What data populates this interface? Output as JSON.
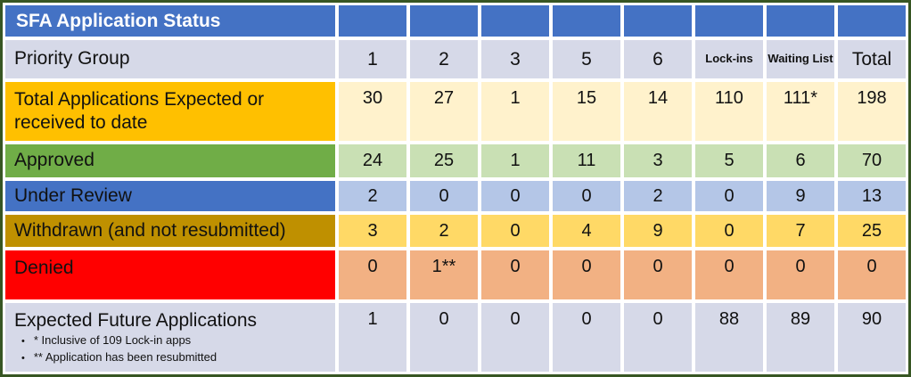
{
  "table": {
    "title": "SFA Application Status",
    "corner_label": "Priority Group",
    "columns": [
      {
        "label": "1",
        "compact": false
      },
      {
        "label": "2",
        "compact": false
      },
      {
        "label": "3",
        "compact": false
      },
      {
        "label": "5",
        "compact": false
      },
      {
        "label": "6",
        "compact": false
      },
      {
        "label": "Lock-ins",
        "compact": true
      },
      {
        "label": "Waiting List",
        "compact": true
      },
      {
        "label": "Total",
        "compact": false
      }
    ],
    "rows": [
      {
        "name": "total-expected",
        "label": "Total Applications Expected or received to date",
        "values": [
          "30",
          "27",
          "1",
          "15",
          "14",
          "110",
          "111*",
          "198"
        ],
        "label_bg": "#FFC000",
        "label_text": "#111111",
        "cell_bg": "#FFF2CC"
      },
      {
        "name": "approved",
        "label": "Approved",
        "values": [
          "24",
          "25",
          "1",
          "11",
          "3",
          "5",
          "6",
          "70"
        ],
        "label_bg": "#70AD47",
        "label_text": "#111111",
        "cell_bg": "#C9E0B4"
      },
      {
        "name": "under-review",
        "label": "Under Review",
        "values": [
          "2",
          "0",
          "0",
          "0",
          "2",
          "0",
          "9",
          "13"
        ],
        "label_bg": "#4472C4",
        "label_text": "#111111",
        "cell_bg": "#B4C6E7"
      },
      {
        "name": "withdrawn",
        "label": "Withdrawn (and not resubmitted)",
        "values": [
          "3",
          "2",
          "0",
          "4",
          "9",
          "0",
          "7",
          "25"
        ],
        "label_bg": "#BF9000",
        "label_text": "#111111",
        "cell_bg": "#FFD966"
      },
      {
        "name": "denied",
        "label": "Denied",
        "values": [
          "0",
          "1**",
          "0",
          "0",
          "0",
          "0",
          "0",
          "0"
        ],
        "label_bg": "#FF0000",
        "label_text": "#111111",
        "cell_bg": "#F2B183"
      },
      {
        "name": "expected-future",
        "label": "Expected Future Applications",
        "values": [
          "1",
          "0",
          "0",
          "0",
          "0",
          "88",
          "89",
          "90"
        ],
        "label_bg": "#D6D9E8",
        "label_text": "#111111",
        "cell_bg": "#D6D9E8",
        "footnotes": [
          "* Inclusive of 109 Lock-in apps",
          "** Application has been resubmitted"
        ]
      }
    ],
    "colors": {
      "outer_border": "#375623",
      "header_blue": "#4472C4",
      "header_title_text": "#FFFFFF",
      "lavender": "#D6D9E8",
      "gutter": "#FFFFFF",
      "amber": "#FFC000",
      "cream": "#FFF2CC",
      "green": "#70AD47",
      "light_green": "#C9E0B4",
      "light_blue": "#B4C6E7",
      "dark_gold": "#BF9000",
      "gold": "#FFD966",
      "red": "#FF0000",
      "peach": "#F2B183"
    }
  },
  "chart_data": {
    "type": "table",
    "title": "SFA Application Status",
    "columns": [
      "Priority Group",
      "1",
      "2",
      "3",
      "5",
      "6",
      "Lock-ins",
      "Waiting List",
      "Total"
    ],
    "rows": [
      [
        "Total Applications Expected or received to date",
        30,
        27,
        1,
        15,
        14,
        110,
        "111*",
        198
      ],
      [
        "Approved",
        24,
        25,
        1,
        11,
        3,
        5,
        6,
        70
      ],
      [
        "Under Review",
        2,
        0,
        0,
        0,
        2,
        0,
        9,
        13
      ],
      [
        "Withdrawn (and not resubmitted)",
        3,
        2,
        0,
        4,
        9,
        0,
        7,
        25
      ],
      [
        "Denied",
        0,
        "1**",
        0,
        0,
        0,
        0,
        0,
        0
      ],
      [
        "Expected Future Applications",
        1,
        0,
        0,
        0,
        0,
        88,
        89,
        90
      ]
    ],
    "footnotes": [
      "* Inclusive of 109 Lock-in apps",
      "** Application has been resubmitted"
    ],
    "legend_position": "none",
    "grid": "white gutters between colored cells, dark green outer border"
  }
}
